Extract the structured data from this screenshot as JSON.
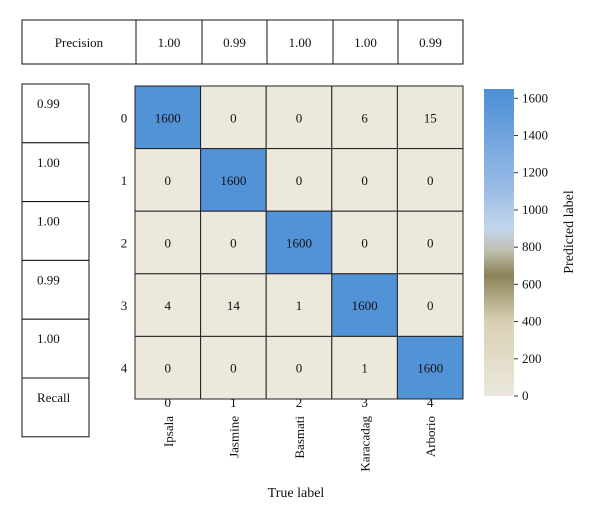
{
  "chart_data": {
    "type": "heatmap",
    "row_tick_labels": [
      "0",
      "1",
      "2",
      "3",
      "4"
    ],
    "col_index_labels": [
      "0",
      "1",
      "2",
      "3",
      "4"
    ],
    "col_class_labels": [
      "Ipsala",
      "Jasmine",
      "Basmati",
      "Karacadag",
      "Arborio"
    ],
    "matrix": [
      [
        1600,
        0,
        0,
        6,
        15
      ],
      [
        0,
        1600,
        0,
        0,
        0
      ],
      [
        0,
        0,
        1600,
        0,
        0
      ],
      [
        4,
        14,
        1,
        1600,
        0
      ],
      [
        0,
        0,
        0,
        1,
        1600
      ]
    ],
    "xlabel": "True label",
    "colorbar_label": "Predicted label",
    "colorbar_ticks": [
      "0",
      "200",
      "400",
      "600",
      "800",
      "1000",
      "1200",
      "1400",
      "1600"
    ],
    "colorbar_range": [
      0,
      1650
    ],
    "colorscale": [
      [
        0,
        "#ece8dc"
      ],
      [
        400,
        "#d8d0b4"
      ],
      [
        650,
        "#8b8258"
      ],
      [
        780,
        "#c0c0b0"
      ],
      [
        900,
        "#c2d6ea"
      ],
      [
        1100,
        "#9cbde6"
      ],
      [
        1650,
        "#4b8ed6"
      ]
    ],
    "precision_row": {
      "label": "Precision",
      "values": [
        "1.00",
        "0.99",
        "1.00",
        "1.00",
        "0.99"
      ]
    },
    "recall_column": {
      "label": "Recall",
      "values": [
        "0.99",
        "1.00",
        "1.00",
        "0.99",
        "1.00"
      ]
    }
  }
}
